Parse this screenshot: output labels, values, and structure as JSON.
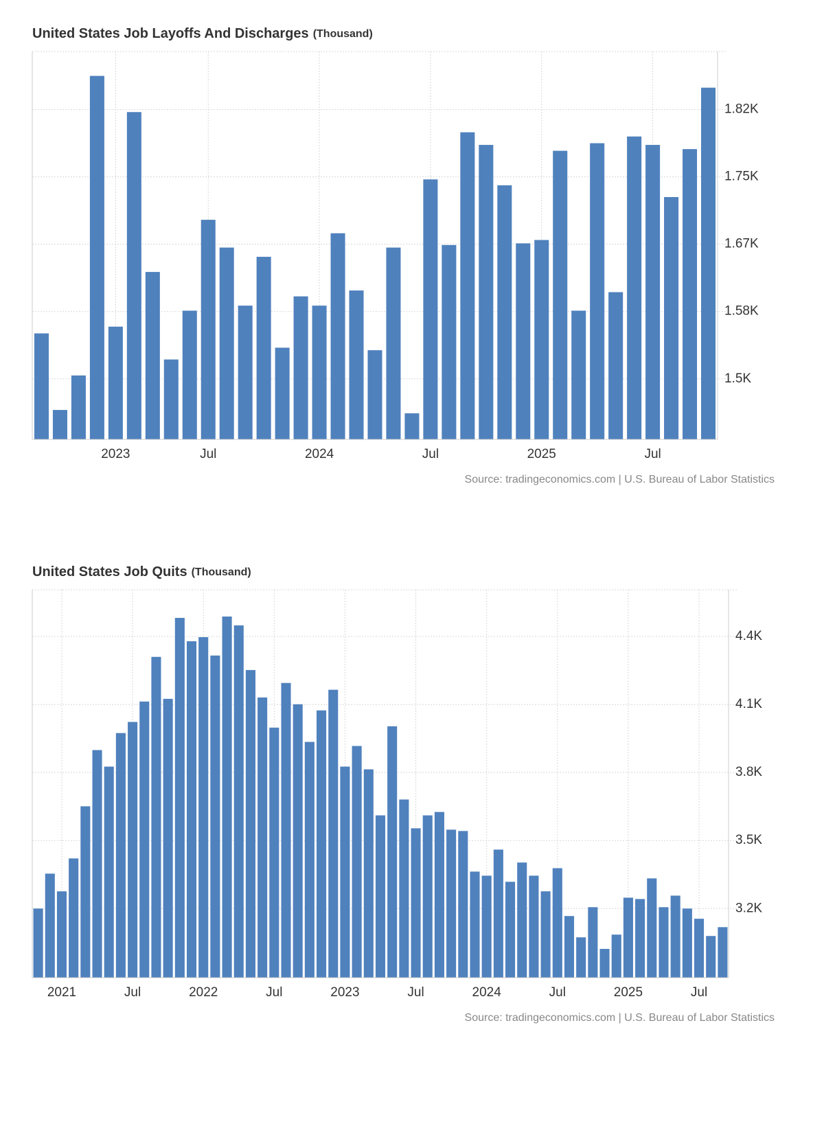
{
  "chart_data": [
    {
      "type": "bar",
      "title": "United States Job Layoffs And Discharges",
      "unit": "(Thousand)",
      "source": "Source: tradingeconomics.com | U.S. Bureau of Labor Statistics",
      "categories": [
        null,
        null,
        null,
        null,
        "2023",
        null,
        null,
        null,
        null,
        "Jul",
        null,
        null,
        null,
        null,
        null,
        "2024",
        null,
        null,
        null,
        null,
        null,
        "Jul",
        null,
        null,
        null,
        null,
        null,
        "2025",
        null,
        null,
        null,
        null,
        null,
        "Jul",
        null,
        null,
        null
      ],
      "values": [
        1559,
        1468,
        1509,
        1865,
        1567,
        1822,
        1632,
        1528,
        1586,
        1694,
        1661,
        1592,
        1650,
        1542,
        1603,
        1592,
        1678,
        1610,
        1539,
        1661,
        1464,
        1742,
        1664,
        1798,
        1783,
        1735,
        1666,
        1670,
        1776,
        1586,
        1785,
        1608,
        1793,
        1783,
        1721,
        1778,
        1851
      ],
      "color": "#4f81bd",
      "ylim": [
        1433,
        1894
      ],
      "yticks": [
        {
          "value": 1505,
          "label": "1.5K"
        },
        {
          "value": 1585,
          "label": "1.58K"
        },
        {
          "value": 1665,
          "label": "1.67K"
        },
        {
          "value": 1745,
          "label": "1.75K"
        },
        {
          "value": 1825,
          "label": "1.82K"
        }
      ],
      "grid": true
    },
    {
      "type": "bar",
      "title": "United States Job Quits",
      "unit": "(Thousand)",
      "source": "Source: tradingeconomics.com | U.S. Bureau of Labor Statistics",
      "categories": [
        null,
        null,
        "2021",
        null,
        null,
        null,
        null,
        null,
        "Jul",
        null,
        null,
        null,
        null,
        null,
        "2022",
        null,
        null,
        null,
        null,
        null,
        "Jul",
        null,
        null,
        null,
        null,
        null,
        "2023",
        null,
        null,
        null,
        null,
        null,
        "Jul",
        null,
        null,
        null,
        null,
        null,
        "2024",
        null,
        null,
        null,
        null,
        null,
        "Jul",
        null,
        null,
        null,
        null,
        null,
        "2025",
        null,
        null,
        null,
        null,
        null,
        "Jul",
        null,
        null
      ],
      "values": [
        3200,
        3354,
        3276,
        3421,
        3651,
        3899,
        3826,
        3974,
        4023,
        4113,
        4310,
        4125,
        4482,
        4379,
        4397,
        4316,
        4488,
        4449,
        4252,
        4131,
        3998,
        4195,
        4101,
        3935,
        4074,
        4165,
        3826,
        3917,
        3814,
        3611,
        4004,
        3681,
        3554,
        3611,
        3626,
        3548,
        3542,
        3363,
        3345,
        3460,
        3318,
        3403,
        3345,
        3276,
        3378,
        3167,
        3073,
        3206,
        3022,
        3085,
        3248,
        3242,
        3333,
        3206,
        3257,
        3200,
        3155,
        3079,
        3118
      ],
      "color": "#4f81bd",
      "ylim": [
        2895,
        4606
      ],
      "yticks": [
        {
          "value": 3200,
          "label": "3.2K"
        },
        {
          "value": 3500,
          "label": "3.5K"
        },
        {
          "value": 3800,
          "label": "3.8K"
        },
        {
          "value": 4100,
          "label": "4.1K"
        },
        {
          "value": 4400,
          "label": "4.4K"
        }
      ],
      "grid": true
    }
  ]
}
